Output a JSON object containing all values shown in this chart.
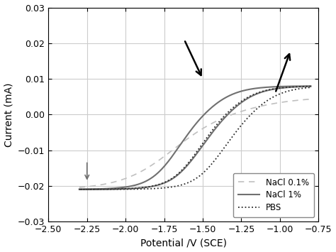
{
  "title": "",
  "xlabel": "Potential /V (SCE)",
  "ylabel": "Current (mA)",
  "xlim": [
    -2.5,
    -0.75
  ],
  "ylim": [
    -0.03,
    0.03
  ],
  "xticks": [
    -2.5,
    -2.25,
    -2.0,
    -1.75,
    -1.5,
    -1.25,
    -1.0,
    -0.75
  ],
  "yticks": [
    -0.03,
    -0.02,
    -0.01,
    0.0,
    0.01,
    0.02,
    0.03
  ],
  "grid_color": "#cccccc",
  "bg_color": "#ffffff",
  "legend_entries": [
    "NaCl 0.1%",
    "NaCl 1%",
    "PBS"
  ],
  "nacl01_color": "#c0c0c0",
  "nacl1_color": "#707070",
  "pbs_color": "#2a2a2a",
  "figsize": [
    4.74,
    3.55
  ],
  "dpi": 100
}
